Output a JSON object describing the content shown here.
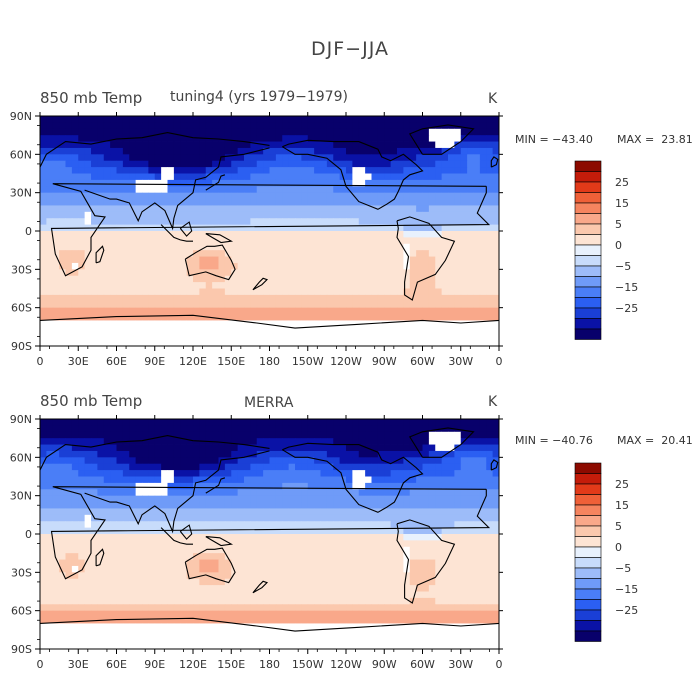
{
  "page_title": "DJF−JJA",
  "panels": [
    {
      "title_left": "850 mb Temp",
      "title_center": "tuning4 (yrs 1979−1979)",
      "unit": "K",
      "min_label": "MIN = −43.40",
      "max_label": "MAX =  23.81"
    },
    {
      "title_left": "850 mb Temp",
      "title_center": "MERRA",
      "unit": "K",
      "min_label": "MIN = −40.76",
      "max_label": "MAX =  20.41"
    }
  ],
  "colorbar": {
    "colors": [
      "#08006b",
      "#0a12a6",
      "#1a3fd6",
      "#2b5ff2",
      "#4a7ef7",
      "#6f9bf8",
      "#9dbcf9",
      "#c8dcfb",
      "#e8f1fd",
      "#fde4d4",
      "#fbc8ad",
      "#f9a88a",
      "#f5845f",
      "#ef6038",
      "#e23a19",
      "#c41c0a",
      "#8c0a00"
    ],
    "labels": [
      "25",
      "15",
      "5",
      "0",
      "−5",
      "−15",
      "−25"
    ]
  },
  "chart_data": [
    {
      "type": "heatmap",
      "title": "850 mb Temp",
      "subtitle": "tuning4 (yrs 1979−1979)",
      "unit": "K",
      "x_ticks": [
        "0",
        "30E",
        "60E",
        "90E",
        "120E",
        "150E",
        "180",
        "150W",
        "120W",
        "90W",
        "60W",
        "30W",
        "0"
      ],
      "y_ticks": [
        "90N",
        "60N",
        "30N",
        "0",
        "30S",
        "60S",
        "90S"
      ],
      "min": -43.4,
      "max": 23.81,
      "contour_levels": [
        -30,
        -25,
        -20,
        -15,
        -10,
        -5,
        0,
        5,
        10,
        15,
        20,
        25,
        30
      ]
    },
    {
      "type": "heatmap",
      "title": "850 mb Temp",
      "subtitle": "MERRA",
      "unit": "K",
      "x_ticks": [
        "0",
        "30E",
        "60E",
        "90E",
        "120E",
        "150E",
        "180",
        "150W",
        "120W",
        "90W",
        "60W",
        "30W",
        "0"
      ],
      "y_ticks": [
        "90N",
        "60N",
        "30N",
        "0",
        "30S",
        "60S",
        "90S"
      ],
      "min": -40.76,
      "max": 20.41,
      "contour_levels": [
        -30,
        -25,
        -20,
        -15,
        -10,
        -5,
        0,
        5,
        10,
        15,
        20,
        25,
        30
      ]
    }
  ]
}
